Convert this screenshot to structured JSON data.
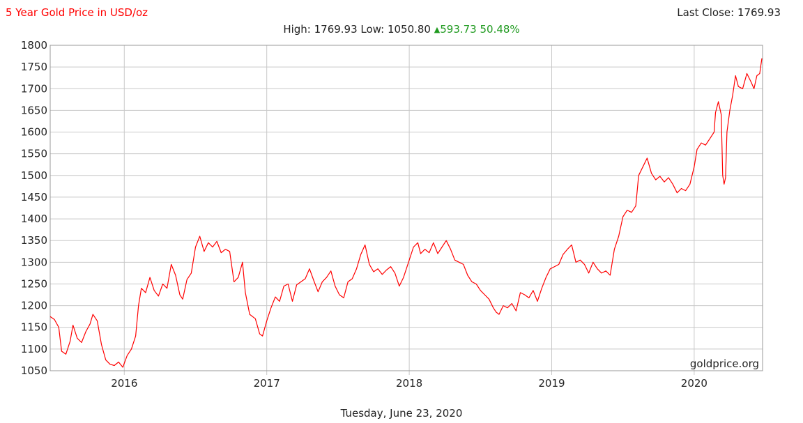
{
  "header": {
    "title": "5 Year Gold Price in USD/oz",
    "last_close": "Last Close: 1769.93",
    "high_low": "High: 1769.93 Low: 1050.80",
    "change_icon": "up-triangle-icon",
    "change": "593.73 50.48%"
  },
  "footer": {
    "date": "Tuesday, June 23, 2020"
  },
  "chart_data": {
    "type": "line",
    "title": "5 Year Gold Price in USD/oz",
    "xlabel": "",
    "ylabel": "",
    "xlim": [
      2015.48,
      2020.48
    ],
    "ylim": [
      1050,
      1800
    ],
    "grid": true,
    "watermark": "goldprice.org",
    "line_color": "#ff0000",
    "up_color": "#1f9a1f",
    "y_ticks": [
      1050,
      1100,
      1150,
      1200,
      1250,
      1300,
      1350,
      1400,
      1450,
      1500,
      1550,
      1600,
      1650,
      1700,
      1750,
      1800
    ],
    "x_ticks": [
      {
        "value": 2016,
        "label": "2016"
      },
      {
        "value": 2017,
        "label": "2017"
      },
      {
        "value": 2018,
        "label": "2018"
      },
      {
        "value": 2019,
        "label": "2019"
      },
      {
        "value": 2020,
        "label": "2020"
      }
    ],
    "series": [
      {
        "points": [
          [
            2015.48,
            1175
          ],
          [
            2015.51,
            1168
          ],
          [
            2015.54,
            1150
          ],
          [
            2015.56,
            1095
          ],
          [
            2015.59,
            1088
          ],
          [
            2015.62,
            1118
          ],
          [
            2015.64,
            1155
          ],
          [
            2015.67,
            1125
          ],
          [
            2015.7,
            1115
          ],
          [
            2015.73,
            1140
          ],
          [
            2015.76,
            1158
          ],
          [
            2015.78,
            1180
          ],
          [
            2015.81,
            1165
          ],
          [
            2015.84,
            1110
          ],
          [
            2015.87,
            1075
          ],
          [
            2015.9,
            1065
          ],
          [
            2015.93,
            1062
          ],
          [
            2015.96,
            1070
          ],
          [
            2015.99,
            1058
          ],
          [
            2016.02,
            1085
          ],
          [
            2016.05,
            1100
          ],
          [
            2016.08,
            1130
          ],
          [
            2016.1,
            1200
          ],
          [
            2016.12,
            1240
          ],
          [
            2016.15,
            1230
          ],
          [
            2016.18,
            1265
          ],
          [
            2016.21,
            1235
          ],
          [
            2016.24,
            1222
          ],
          [
            2016.27,
            1250
          ],
          [
            2016.3,
            1240
          ],
          [
            2016.33,
            1295
          ],
          [
            2016.36,
            1270
          ],
          [
            2016.39,
            1225
          ],
          [
            2016.41,
            1215
          ],
          [
            2016.44,
            1260
          ],
          [
            2016.47,
            1275
          ],
          [
            2016.5,
            1335
          ],
          [
            2016.53,
            1360
          ],
          [
            2016.56,
            1325
          ],
          [
            2016.59,
            1345
          ],
          [
            2016.62,
            1335
          ],
          [
            2016.65,
            1348
          ],
          [
            2016.68,
            1322
          ],
          [
            2016.71,
            1330
          ],
          [
            2016.74,
            1325
          ],
          [
            2016.77,
            1255
          ],
          [
            2016.8,
            1265
          ],
          [
            2016.83,
            1300
          ],
          [
            2016.85,
            1230
          ],
          [
            2016.88,
            1180
          ],
          [
            2016.92,
            1170
          ],
          [
            2016.95,
            1135
          ],
          [
            2016.97,
            1130
          ],
          [
            2017.0,
            1165
          ],
          [
            2017.03,
            1195
          ],
          [
            2017.06,
            1220
          ],
          [
            2017.09,
            1210
          ],
          [
            2017.12,
            1245
          ],
          [
            2017.15,
            1250
          ],
          [
            2017.18,
            1210
          ],
          [
            2017.21,
            1248
          ],
          [
            2017.24,
            1255
          ],
          [
            2017.27,
            1262
          ],
          [
            2017.3,
            1285
          ],
          [
            2017.33,
            1258
          ],
          [
            2017.36,
            1232
          ],
          [
            2017.39,
            1255
          ],
          [
            2017.42,
            1265
          ],
          [
            2017.45,
            1280
          ],
          [
            2017.48,
            1245
          ],
          [
            2017.51,
            1225
          ],
          [
            2017.54,
            1218
          ],
          [
            2017.57,
            1255
          ],
          [
            2017.6,
            1262
          ],
          [
            2017.63,
            1285
          ],
          [
            2017.66,
            1318
          ],
          [
            2017.69,
            1340
          ],
          [
            2017.72,
            1295
          ],
          [
            2017.75,
            1278
          ],
          [
            2017.78,
            1285
          ],
          [
            2017.81,
            1272
          ],
          [
            2017.84,
            1282
          ],
          [
            2017.87,
            1290
          ],
          [
            2017.9,
            1275
          ],
          [
            2017.93,
            1245
          ],
          [
            2017.96,
            1265
          ],
          [
            2018.0,
            1305
          ],
          [
            2018.03,
            1335
          ],
          [
            2018.06,
            1345
          ],
          [
            2018.08,
            1320
          ],
          [
            2018.11,
            1330
          ],
          [
            2018.14,
            1322
          ],
          [
            2018.17,
            1345
          ],
          [
            2018.2,
            1320
          ],
          [
            2018.23,
            1335
          ],
          [
            2018.26,
            1350
          ],
          [
            2018.29,
            1330
          ],
          [
            2018.32,
            1305
          ],
          [
            2018.35,
            1300
          ],
          [
            2018.38,
            1295
          ],
          [
            2018.41,
            1270
          ],
          [
            2018.44,
            1255
          ],
          [
            2018.47,
            1250
          ],
          [
            2018.5,
            1235
          ],
          [
            2018.53,
            1225
          ],
          [
            2018.56,
            1215
          ],
          [
            2018.59,
            1195
          ],
          [
            2018.61,
            1185
          ],
          [
            2018.63,
            1180
          ],
          [
            2018.66,
            1200
          ],
          [
            2018.69,
            1195
          ],
          [
            2018.72,
            1205
          ],
          [
            2018.75,
            1188
          ],
          [
            2018.78,
            1230
          ],
          [
            2018.81,
            1225
          ],
          [
            2018.84,
            1218
          ],
          [
            2018.87,
            1235
          ],
          [
            2018.9,
            1210
          ],
          [
            2018.93,
            1240
          ],
          [
            2018.96,
            1265
          ],
          [
            2018.99,
            1285
          ],
          [
            2019.02,
            1290
          ],
          [
            2019.05,
            1295
          ],
          [
            2019.08,
            1318
          ],
          [
            2019.11,
            1330
          ],
          [
            2019.14,
            1340
          ],
          [
            2019.17,
            1300
          ],
          [
            2019.2,
            1305
          ],
          [
            2019.23,
            1295
          ],
          [
            2019.26,
            1275
          ],
          [
            2019.29,
            1300
          ],
          [
            2019.32,
            1285
          ],
          [
            2019.35,
            1275
          ],
          [
            2019.38,
            1280
          ],
          [
            2019.41,
            1270
          ],
          [
            2019.44,
            1330
          ],
          [
            2019.47,
            1360
          ],
          [
            2019.5,
            1405
          ],
          [
            2019.53,
            1420
          ],
          [
            2019.56,
            1415
          ],
          [
            2019.59,
            1430
          ],
          [
            2019.61,
            1500
          ],
          [
            2019.64,
            1520
          ],
          [
            2019.67,
            1540
          ],
          [
            2019.7,
            1505
          ],
          [
            2019.73,
            1490
          ],
          [
            2019.76,
            1498
          ],
          [
            2019.79,
            1485
          ],
          [
            2019.82,
            1495
          ],
          [
            2019.85,
            1480
          ],
          [
            2019.88,
            1460
          ],
          [
            2019.91,
            1470
          ],
          [
            2019.94,
            1465
          ],
          [
            2019.97,
            1480
          ],
          [
            2020.0,
            1520
          ],
          [
            2020.02,
            1560
          ],
          [
            2020.05,
            1575
          ],
          [
            2020.08,
            1570
          ],
          [
            2020.11,
            1585
          ],
          [
            2020.14,
            1600
          ],
          [
            2020.15,
            1645
          ],
          [
            2020.17,
            1670
          ],
          [
            2020.19,
            1640
          ],
          [
            2020.2,
            1500
          ],
          [
            2020.21,
            1480
          ],
          [
            2020.22,
            1495
          ],
          [
            2020.23,
            1600
          ],
          [
            2020.25,
            1650
          ],
          [
            2020.27,
            1685
          ],
          [
            2020.29,
            1730
          ],
          [
            2020.31,
            1705
          ],
          [
            2020.34,
            1700
          ],
          [
            2020.37,
            1735
          ],
          [
            2020.4,
            1715
          ],
          [
            2020.42,
            1700
          ],
          [
            2020.44,
            1730
          ],
          [
            2020.46,
            1735
          ],
          [
            2020.475,
            1769.93
          ]
        ]
      }
    ]
  }
}
